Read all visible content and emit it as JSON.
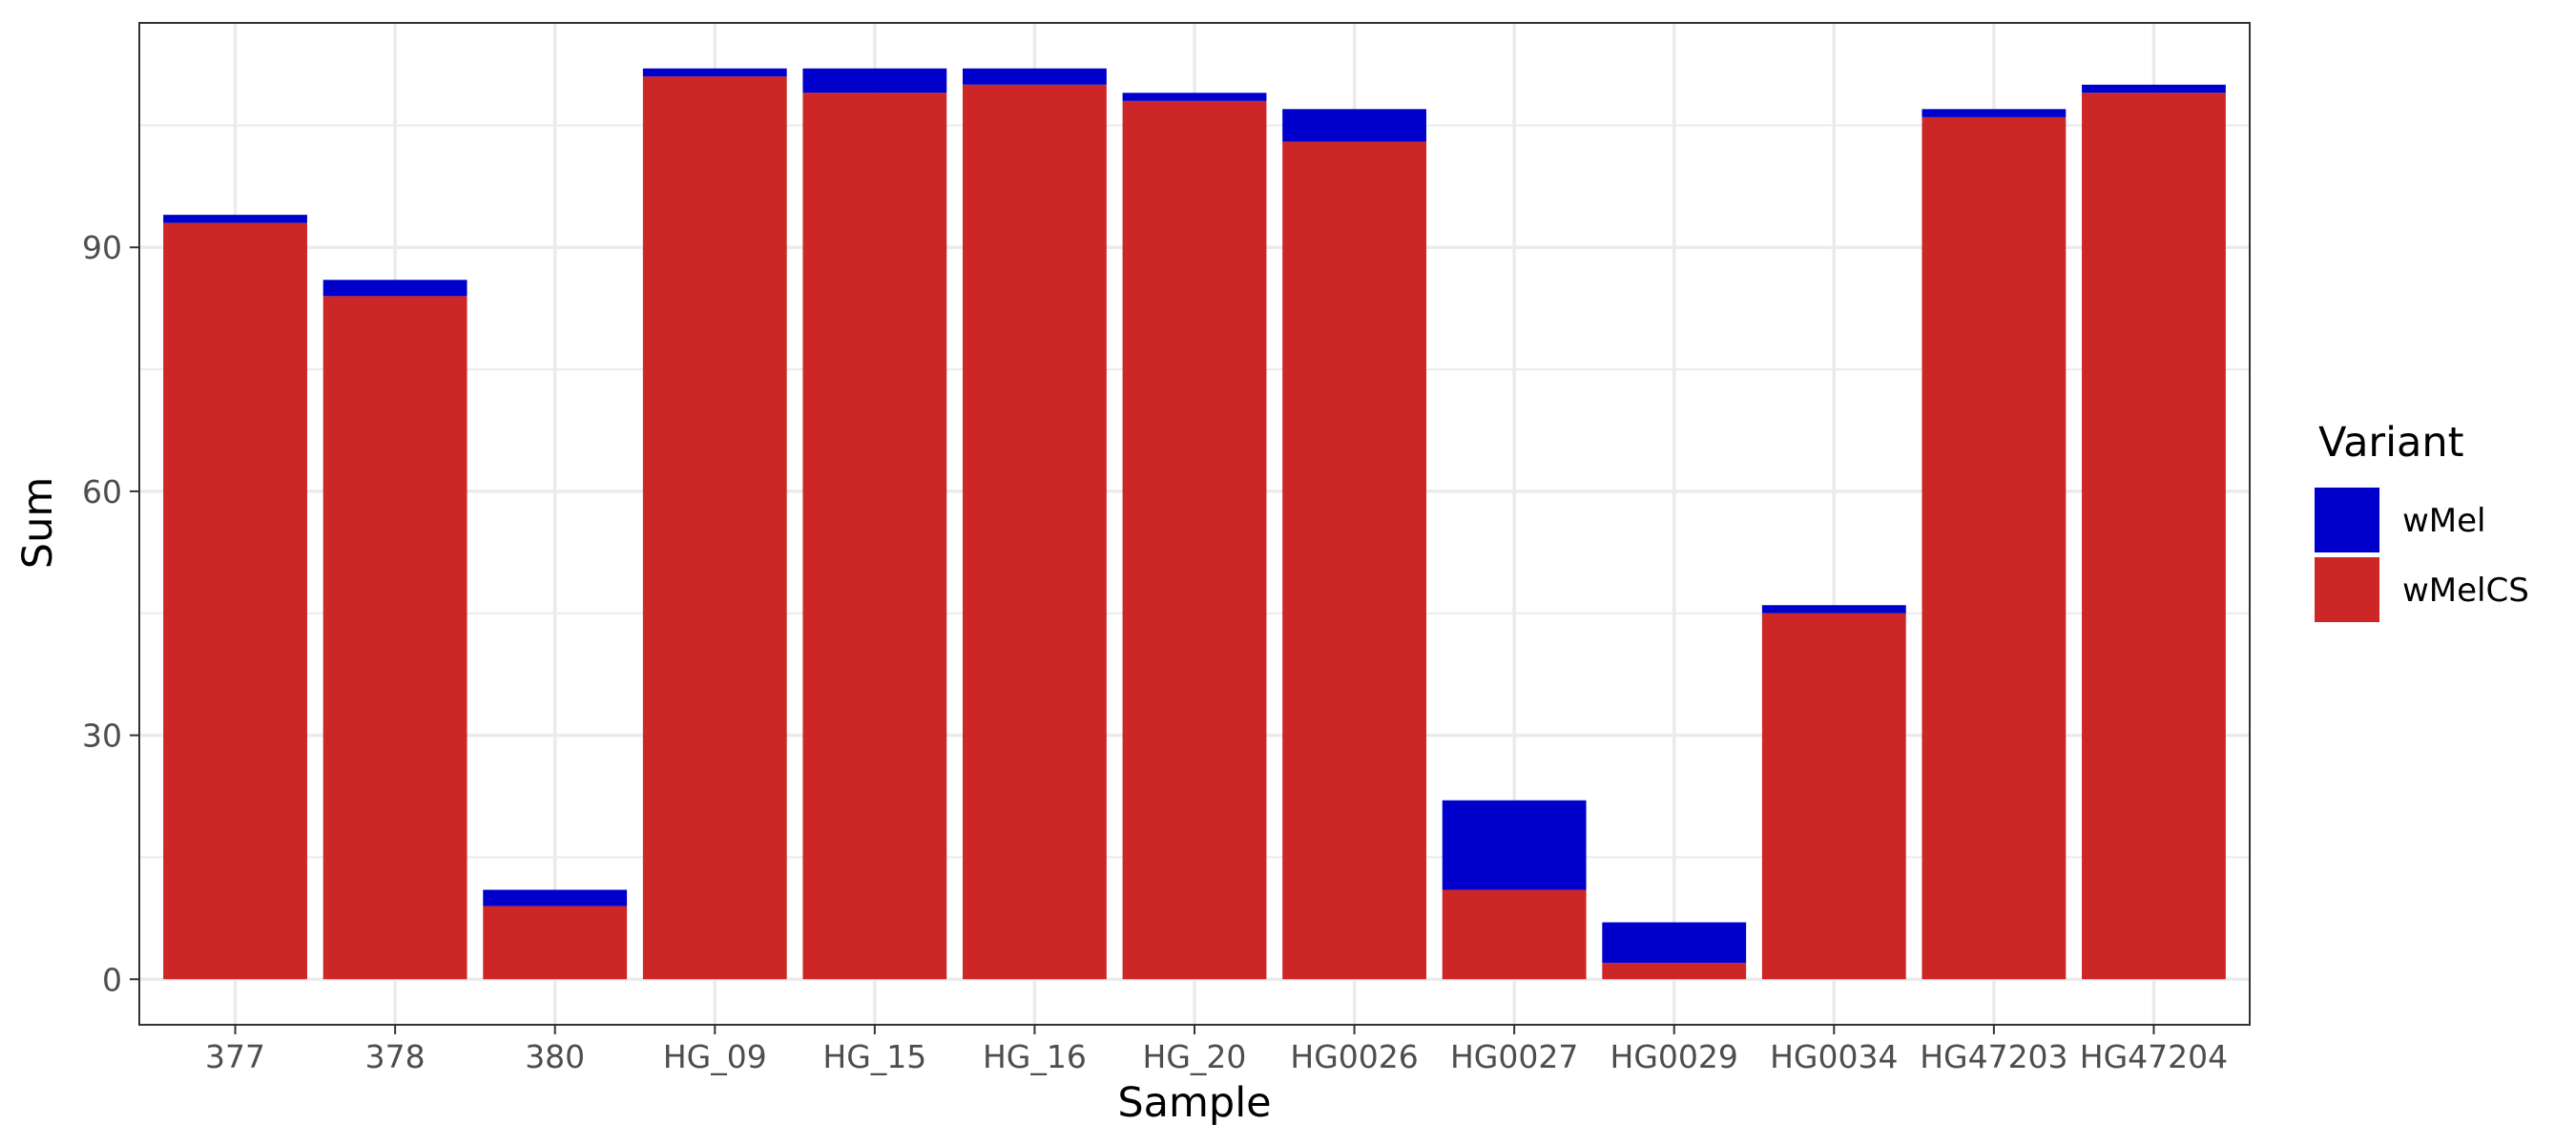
{
  "chart_data": {
    "type": "bar",
    "stacked": true,
    "xlabel": "Sample",
    "ylabel": "Sum",
    "categories": [
      "377",
      "378",
      "380",
      "HG_09",
      "HG_15",
      "HG_16",
      "HG_20",
      "HG0026",
      "HG0027",
      "HG0029",
      "HG0034",
      "HG47203",
      "HG47204"
    ],
    "series": [
      {
        "name": "wMelCS",
        "color": "#cd2626",
        "values": [
          93,
          84,
          9,
          111,
          109,
          110,
          108,
          103,
          11,
          2,
          45,
          106,
          109
        ]
      },
      {
        "name": "wMel",
        "color": "#0000cd",
        "values": [
          1,
          2,
          2,
          1,
          3,
          2,
          1,
          4,
          11,
          5,
          1,
          1,
          1
        ]
      }
    ],
    "ylim": [
      -5.6,
      117.6
    ],
    "yticks": [
      0,
      30,
      60,
      90
    ],
    "yticks_labels": [
      "0",
      "30",
      "60",
      "90"
    ],
    "grid": true,
    "legend": {
      "title": "Variant",
      "position": "right",
      "entries": [
        {
          "label": "wMel",
          "color": "#0000cd"
        },
        {
          "label": "wMelCS",
          "color": "#cd2626"
        }
      ]
    },
    "panel_border_color": "#333333",
    "grid_color": "#ebebeb"
  }
}
